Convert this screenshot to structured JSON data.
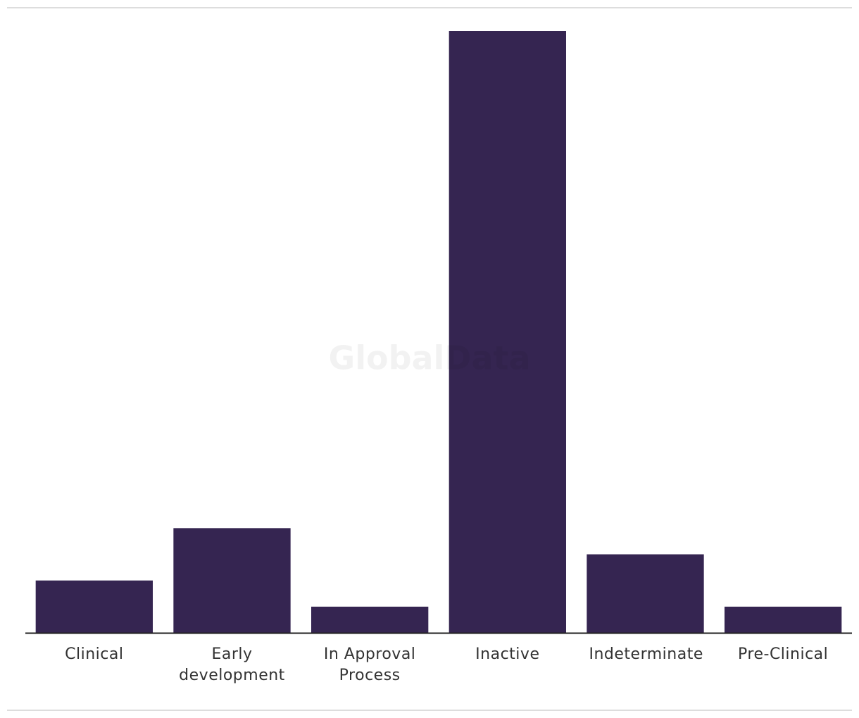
{
  "chart_data": {
    "type": "bar",
    "watermark": "GlobalData",
    "categories": [
      "Clinical",
      "Early development",
      "In Approval Process",
      "Inactive",
      "Indeterminate",
      "Pre-Clinical"
    ],
    "values": [
      2,
      4,
      1,
      23,
      3,
      1
    ],
    "color": "#352551",
    "ylim": [
      0,
      23
    ]
  }
}
